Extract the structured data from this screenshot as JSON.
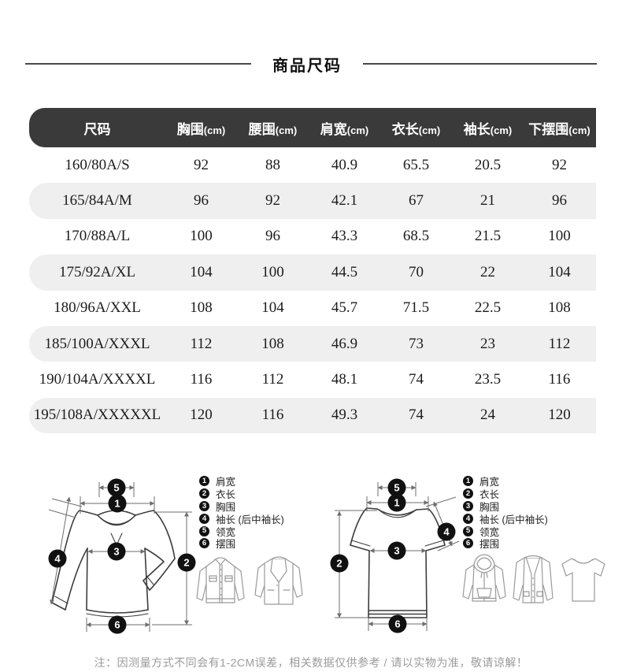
{
  "page": {
    "title": "商品尺码",
    "note": "注：因测量方式不同会有1-2CM误差，相关数据仅供参考 / 请以实物为准，敬请谅解！"
  },
  "size_table": {
    "columns": [
      {
        "name": "尺码",
        "unit": ""
      },
      {
        "name": "胸围",
        "unit": "(cm)"
      },
      {
        "name": "腰围",
        "unit": "(cm)"
      },
      {
        "name": "肩宽",
        "unit": "(cm)"
      },
      {
        "name": "衣长",
        "unit": "(cm)"
      },
      {
        "name": "袖长",
        "unit": "(cm)"
      },
      {
        "name": "下摆围",
        "unit": "(cm)"
      }
    ],
    "rows": [
      [
        "160/80A/S",
        "92",
        "88",
        "40.9",
        "65.5",
        "20.5",
        "92"
      ],
      [
        "165/84A/M",
        "96",
        "92",
        "42.1",
        "67",
        "21",
        "96"
      ],
      [
        "170/88A/L",
        "100",
        "96",
        "43.3",
        "68.5",
        "21.5",
        "100"
      ],
      [
        "175/92A/XL",
        "104",
        "100",
        "44.5",
        "70",
        "22",
        "104"
      ],
      [
        "180/96A/XXL",
        "108",
        "104",
        "45.7",
        "71.5",
        "22.5",
        "108"
      ],
      [
        "185/100A/XXXL",
        "112",
        "108",
        "46.9",
        "73",
        "23",
        "112"
      ],
      [
        "190/104A/XXXXL",
        "116",
        "112",
        "48.1",
        "74",
        "23.5",
        "116"
      ],
      [
        "195/108A/XXXXXL",
        "120",
        "116",
        "49.3",
        "74",
        "24",
        "120"
      ]
    ]
  },
  "legend": {
    "items": [
      {
        "num": "1",
        "label": "肩宽"
      },
      {
        "num": "2",
        "label": "衣长"
      },
      {
        "num": "3",
        "label": "胸围"
      },
      {
        "num": "4",
        "label": "袖长 (后中袖长)"
      },
      {
        "num": "5",
        "label": "领宽"
      },
      {
        "num": "6",
        "label": "摆围"
      }
    ]
  },
  "diagram": {
    "markers": [
      "1",
      "2",
      "3",
      "4",
      "5",
      "6"
    ]
  },
  "colors": {
    "header_bg": "#3a3a3a",
    "header_text": "#ffffff",
    "alt_row_bg": "#efefef",
    "body_text": "#1c1c1c",
    "note_text": "#9b9b9b",
    "badge_bg": "#111111"
  }
}
